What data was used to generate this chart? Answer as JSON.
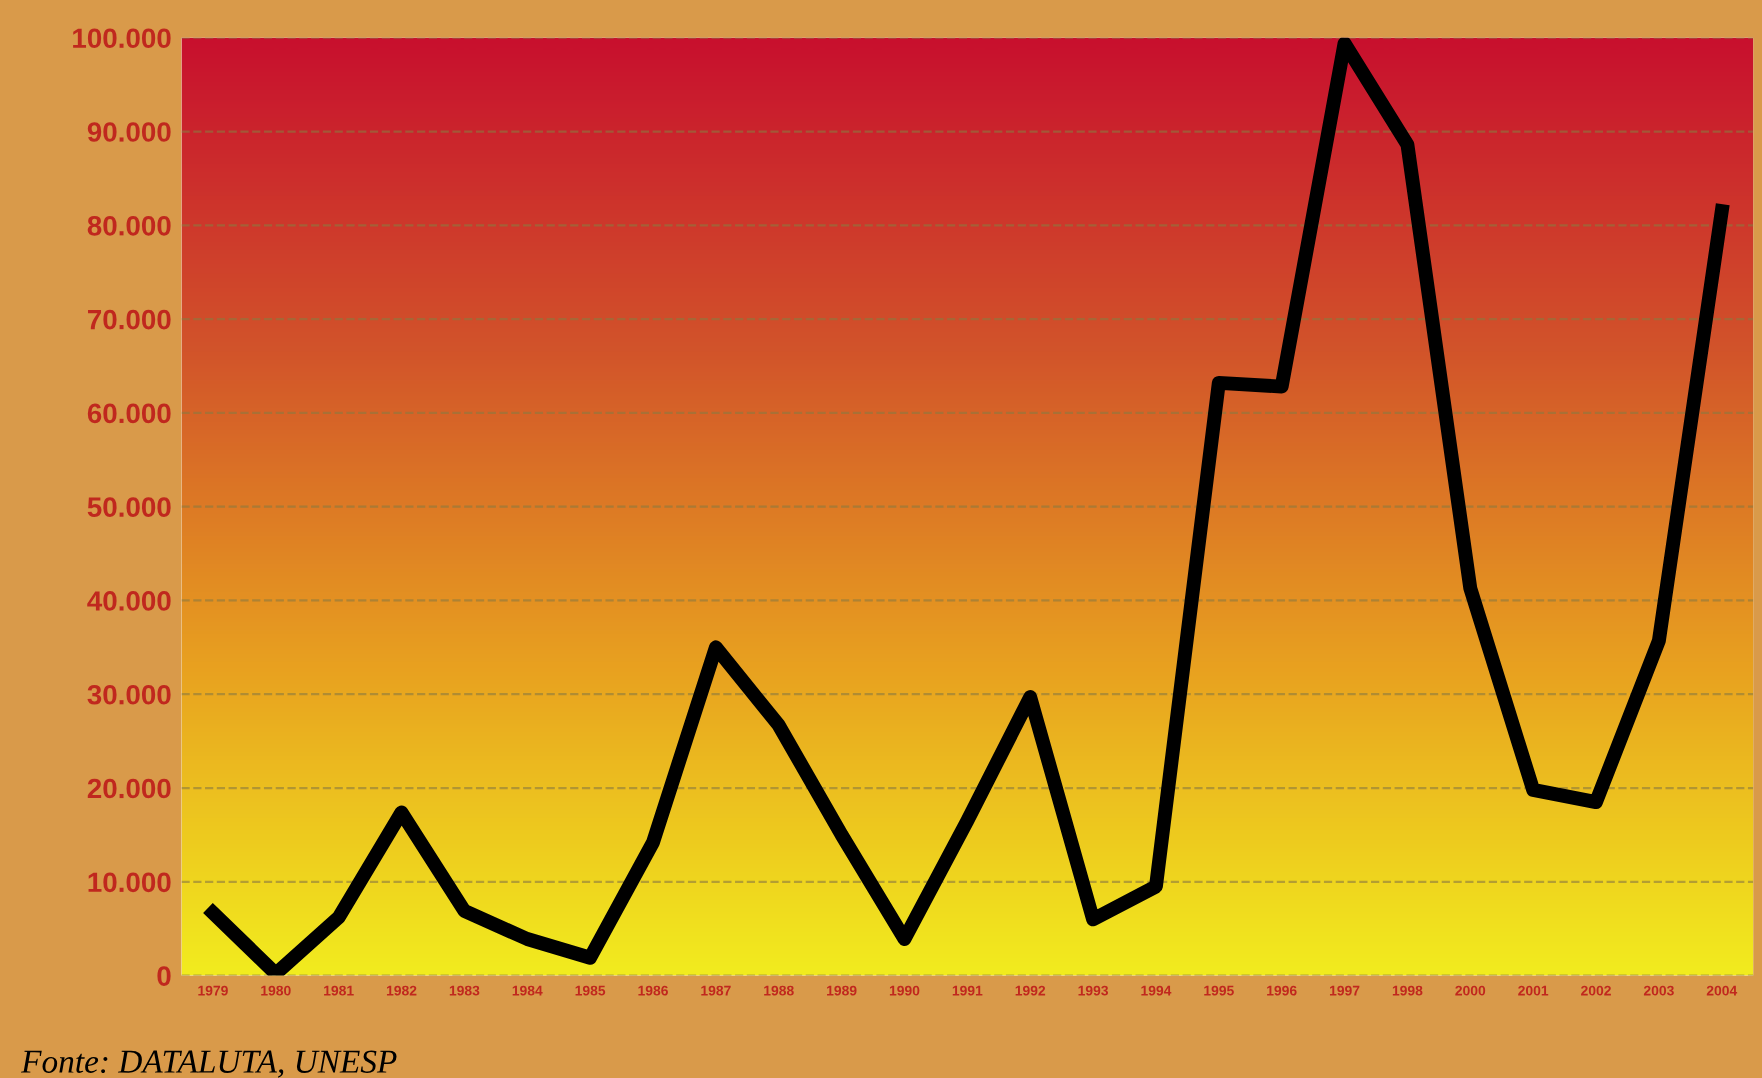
{
  "chart_data": {
    "type": "line",
    "categories": [
      "1979",
      "1980",
      "1981",
      "1982",
      "1983",
      "1984",
      "1985",
      "1986",
      "1987",
      "1988",
      "1989",
      "1990",
      "1991",
      "1992",
      "1993",
      "1994",
      "1995",
      "1996",
      "1997",
      "1998",
      "2000",
      "2001",
      "2002",
      "2003",
      "2004"
    ],
    "series": [
      {
        "color": "#000000",
        "values": [
          6700,
          200,
          6200,
          17400,
          6900,
          3900,
          1900,
          14200,
          35000,
          26700,
          15000,
          3900,
          16500,
          29700,
          6000,
          9500,
          63200,
          62800,
          99400,
          88600,
          41300,
          19800,
          18500,
          35700,
          81500
        ]
      }
    ],
    "ylim": [
      0,
      100000
    ],
    "yticks": [
      {
        "value": 0,
        "label": "0"
      },
      {
        "value": 10000,
        "label": "10.000"
      },
      {
        "value": 20000,
        "label": "20.000"
      },
      {
        "value": 30000,
        "label": "30.000"
      },
      {
        "value": 40000,
        "label": "40.000"
      },
      {
        "value": 50000,
        "label": "50.000"
      },
      {
        "value": 60000,
        "label": "60.000"
      },
      {
        "value": 70000,
        "label": "70.000"
      },
      {
        "value": 80000,
        "label": "80.000"
      },
      {
        "value": 90000,
        "label": "90.000"
      },
      {
        "value": 100000,
        "label": "100.000"
      }
    ],
    "grid": "y",
    "marker": "none",
    "line_style": "solid",
    "annotations": [
      "Fonte: DATALUTA, UNESP"
    ]
  }
}
